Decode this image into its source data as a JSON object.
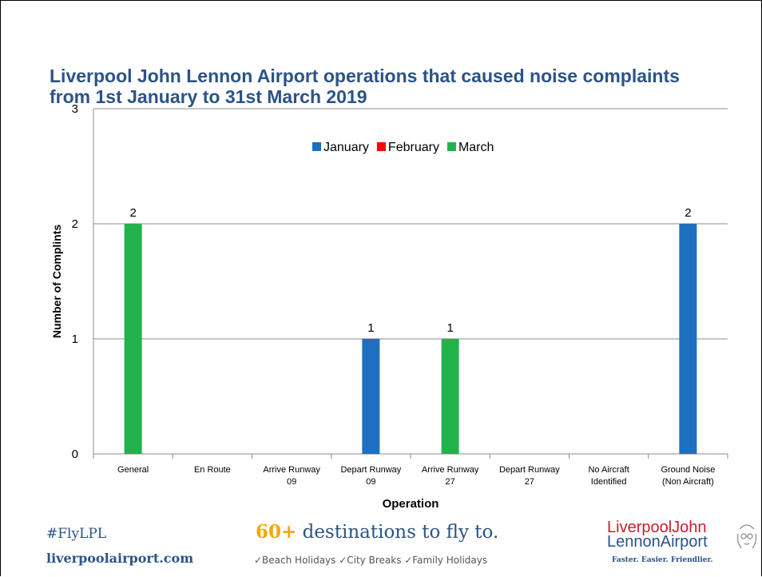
{
  "page": {
    "title": "Liverpool John Lennon Airport operations that caused noise complaints from 1st January to 31st March 2019"
  },
  "chart_data": {
    "type": "bar",
    "categories": [
      "General",
      "En Route",
      "Arrive Runway 09",
      "Depart Runway 09",
      "Arrive Runway 27",
      "Depart Runway 27",
      "No Aircraft Identified",
      "Ground Noise (Non Aircraft)"
    ],
    "category_lines": [
      [
        "General"
      ],
      [
        "En Route"
      ],
      [
        "Arrive Runway",
        "09"
      ],
      [
        "Depart Runway",
        "09"
      ],
      [
        "Arrive Runway",
        "27"
      ],
      [
        "Depart Runway",
        "27"
      ],
      [
        "No Aircraft",
        "Identified"
      ],
      [
        "Ground Noise",
        "(Non Aircraft)"
      ]
    ],
    "series": [
      {
        "name": "January",
        "color": "#1f6fc0",
        "values": [
          0,
          0,
          0,
          1,
          0,
          0,
          0,
          2
        ]
      },
      {
        "name": "February",
        "color": "#ff0000",
        "values": [
          0,
          0,
          0,
          0,
          0,
          0,
          0,
          0
        ]
      },
      {
        "name": "March",
        "color": "#22b24c",
        "values": [
          2,
          0,
          0,
          0,
          1,
          0,
          0,
          0
        ]
      }
    ],
    "xlabel": "Operation",
    "ylabel": "Number of Complints",
    "ylim": [
      0,
      3
    ],
    "yticks": [
      "0",
      "1",
      "2",
      "3"
    ],
    "grid": true,
    "legend": "top-center"
  },
  "footer": {
    "hashtag": "#FlyLPL",
    "url": "liverpoolairport.com",
    "promo_number": "60+",
    "promo_text": " destinations to fly to.",
    "features": "✓Beach Holidays ✓City Breaks ✓Family Holidays",
    "logo_line1": "LiverpoolJohn",
    "logo_line2": "LennonAirport",
    "logo_tagline": "Faster. Easier. Friendlier."
  }
}
